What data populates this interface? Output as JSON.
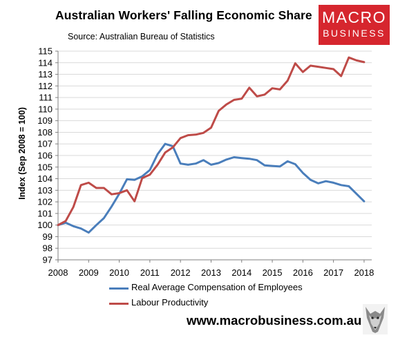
{
  "header": {
    "title": "Australian Workers' Falling Economic Share",
    "source": "Source: Australian Bureau of Statistics",
    "website": "www.macrobusiness.com.au"
  },
  "logo": {
    "line1": "MACRO",
    "line2": "BUSINESS",
    "color": "#d6262e"
  },
  "colors": {
    "blue": "#4a7ebb",
    "red": "#be4b48",
    "grid": "#d9d9d9",
    "axis": "#7f7f7f"
  },
  "chart_data": {
    "type": "line",
    "title": "Australian Workers' Falling Economic Share",
    "subtitle": "Source: Australian Bureau of Statistics",
    "xlabel": "",
    "ylabel": "Index (Sep 2008 = 100)",
    "ylim": [
      97,
      115
    ],
    "xlim": [
      2008,
      2018.25
    ],
    "yticks": [
      "97",
      "98",
      "99",
      "100",
      "101",
      "102",
      "103",
      "104",
      "105",
      "106",
      "107",
      "108",
      "109",
      "110",
      "111",
      "112",
      "113",
      "114",
      "115"
    ],
    "xticks": [
      "2008",
      "2009",
      "2010",
      "2011",
      "2012",
      "2013",
      "2014",
      "2015",
      "2016",
      "2017",
      "2018"
    ],
    "grid": "horizontal",
    "legend_position": "bottom",
    "series": [
      {
        "name": "Real Average Compensation of Employees",
        "color": "#4a7ebb",
        "x": [
          2008.0,
          2008.25,
          2008.5,
          2008.75,
          2009.0,
          2009.25,
          2009.5,
          2009.75,
          2010.0,
          2010.25,
          2010.5,
          2010.75,
          2011.0,
          2011.25,
          2011.5,
          2011.75,
          2012.0,
          2012.25,
          2012.5,
          2012.75,
          2013.0,
          2013.25,
          2013.5,
          2013.75,
          2014.0,
          2014.25,
          2014.5,
          2014.75,
          2015.0,
          2015.25,
          2015.5,
          2015.75,
          2016.0,
          2016.25,
          2016.5,
          2016.75,
          2017.0,
          2017.25,
          2017.5,
          2017.75,
          2018.0
        ],
        "y": [
          100.0,
          100.2,
          99.9,
          99.7,
          99.35,
          100.0,
          100.6,
          101.6,
          102.7,
          103.95,
          103.9,
          104.2,
          104.75,
          106.1,
          107.0,
          106.8,
          105.3,
          105.2,
          105.3,
          105.6,
          105.2,
          105.35,
          105.65,
          105.85,
          105.78,
          105.72,
          105.6,
          105.15,
          105.1,
          105.05,
          105.5,
          105.25,
          104.5,
          103.9,
          103.6,
          103.78,
          103.65,
          103.45,
          103.35,
          102.7,
          102.05
        ]
      },
      {
        "name": "Labour Productivity",
        "color": "#be4b48",
        "x": [
          2008.0,
          2008.25,
          2008.5,
          2008.75,
          2009.0,
          2009.25,
          2009.5,
          2009.75,
          2010.0,
          2010.25,
          2010.5,
          2010.75,
          2011.0,
          2011.25,
          2011.5,
          2011.75,
          2012.0,
          2012.25,
          2012.5,
          2012.75,
          2013.0,
          2013.25,
          2013.5,
          2013.75,
          2014.0,
          2014.25,
          2014.5,
          2014.75,
          2015.0,
          2015.25,
          2015.5,
          2015.75,
          2016.0,
          2016.25,
          2016.5,
          2016.75,
          2017.0,
          2017.25,
          2017.5,
          2017.75,
          2018.0
        ],
        "y": [
          100.0,
          100.35,
          101.55,
          103.45,
          103.65,
          103.2,
          103.2,
          102.65,
          102.75,
          103.0,
          102.05,
          104.05,
          104.35,
          105.2,
          106.25,
          106.7,
          107.5,
          107.75,
          107.8,
          107.95,
          108.4,
          109.85,
          110.4,
          110.8,
          110.9,
          111.85,
          111.1,
          111.25,
          111.8,
          111.7,
          112.45,
          113.95,
          113.2,
          113.75,
          113.65,
          113.55,
          113.45,
          112.85,
          114.45,
          114.2,
          114.05
        ]
      }
    ]
  }
}
